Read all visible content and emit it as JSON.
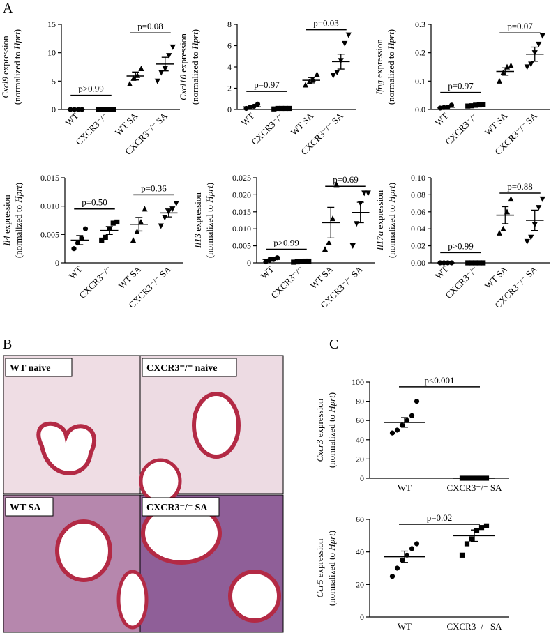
{
  "panel_labels": [
    "A",
    "B",
    "C"
  ],
  "histology_labels": [
    "WT naive",
    "CXCR3⁻/⁻ naive",
    "WT SA",
    "CXCR3⁻/⁻ SA"
  ],
  "chart_data": [
    {
      "type": "dotplot",
      "ylabel": {
        "gene": "Cxcl9",
        "suffix": " expression",
        "pre": "(normalized to ",
        "ref": "Hprt",
        "post": ")"
      },
      "ylim": [
        0,
        15
      ],
      "yticks": [
        0,
        5,
        10,
        15
      ],
      "color": "#000000",
      "groups": [
        {
          "category": "WT",
          "marker": "circle",
          "values": [
            0,
            0,
            0,
            0
          ],
          "mean": 0,
          "sem": 0
        },
        {
          "category": "CXCR3⁻/⁻",
          "marker": "square",
          "values": [
            0,
            0,
            0,
            0,
            0
          ],
          "mean": 0,
          "sem": 0
        },
        {
          "category": "WT SA",
          "marker": "triangle",
          "values": [
            4.5,
            5.5,
            6,
            7.2
          ],
          "mean": 5.9,
          "sem": 0.7
        },
        {
          "category": "CXCR3⁻/⁻ SA",
          "marker": "triangle-down",
          "values": [
            5,
            6.5,
            7.2,
            9.5,
            11
          ],
          "mean": 8,
          "sem": 1.2
        }
      ],
      "comparisons": [
        {
          "label": "p>0.99",
          "between": [
            "WT",
            "CXCR3⁻/⁻"
          ],
          "y": 2.5
        },
        {
          "label": "p=0.08",
          "between": [
            "WT SA",
            "CXCR3⁻/⁻ SA"
          ],
          "y": 13.5
        }
      ]
    },
    {
      "type": "dotplot",
      "ylabel": {
        "gene": "Cxcl10",
        "suffix": " expression",
        "pre": "(normalized to ",
        "ref": "Hprt",
        "post": ")"
      },
      "ylim": [
        0,
        8
      ],
      "yticks": [
        0,
        2,
        4,
        6,
        8
      ],
      "color": "#000000",
      "groups": [
        {
          "category": "WT",
          "marker": "circle",
          "values": [
            0.1,
            0.2,
            0.3,
            0.5
          ],
          "mean": 0.25,
          "sem": 0.1
        },
        {
          "category": "CXCR3⁻/⁻",
          "marker": "square",
          "values": [
            0.05,
            0.1,
            0.1,
            0.1,
            0.1
          ],
          "mean": 0.08,
          "sem": 0.01
        },
        {
          "category": "WT SA",
          "marker": "triangle",
          "values": [
            2.3,
            2.6,
            2.8,
            3.3
          ],
          "mean": 2.75,
          "sem": 0.25
        },
        {
          "category": "CXCR3⁻/⁻ SA",
          "marker": "triangle-down",
          "values": [
            3.2,
            3.5,
            4.6,
            6.2,
            7.0
          ],
          "mean": 4.5,
          "sem": 0.7
        }
      ],
      "comparisons": [
        {
          "label": "p=0.97",
          "between": [
            "WT",
            "CXCR3⁻/⁻"
          ],
          "y": 1.7
        },
        {
          "label": "p=0.03",
          "between": [
            "WT SA",
            "CXCR3⁻/⁻ SA"
          ],
          "y": 7.5
        }
      ]
    },
    {
      "type": "dotplot",
      "ylabel": {
        "gene": "Ifng",
        "suffix": " expression",
        "pre": "(normalized to ",
        "ref": "Hprt",
        "post": ")"
      },
      "ylim": [
        0,
        0.3
      ],
      "yticks": [
        {
          "value": 0,
          "label": "0.0"
        },
        0.1,
        0.2,
        0.3
      ],
      "color": "#000000",
      "groups": [
        {
          "category": "WT",
          "marker": "circle",
          "values": [
            0.005,
            0.007,
            0.008,
            0.015
          ],
          "mean": 0.008,
          "sem": 0.002
        },
        {
          "category": "CXCR3⁻/⁻",
          "marker": "square",
          "values": [
            0.012,
            0.013,
            0.015,
            0.016,
            0.018
          ],
          "mean": 0.015,
          "sem": 0.001
        },
        {
          "category": "WT SA",
          "marker": "triangle",
          "values": [
            0.1,
            0.13,
            0.15,
            0.155
          ],
          "mean": 0.134,
          "sem": 0.013
        },
        {
          "category": "CXCR3⁻/⁻ SA",
          "marker": "triangle-down",
          "values": [
            0.15,
            0.16,
            0.2,
            0.23,
            0.26
          ],
          "mean": 0.195,
          "sem": 0.025
        }
      ],
      "comparisons": [
        {
          "label": "p=0.97",
          "between": [
            "WT",
            "CXCR3⁻/⁻"
          ],
          "y": 0.06
        },
        {
          "label": "p=0.07",
          "between": [
            "WT SA",
            "CXCR3⁻/⁻ SA"
          ],
          "y": 0.27
        }
      ]
    },
    {
      "type": "dotplot",
      "ylabel": {
        "gene": "Il4",
        "suffix": " expression",
        "pre": "(normalized to ",
        "ref": "Hprt",
        "post": ")"
      },
      "ylim": [
        0,
        0.015
      ],
      "yticks": [
        0,
        0.005,
        {
          "value": 0.01,
          "label": "0.010"
        },
        0.015
      ],
      "color": "#000000",
      "groups": [
        {
          "category": "WT",
          "marker": "circle",
          "values": [
            0.0025,
            0.0035,
            0.0043,
            0.006
          ],
          "mean": 0.004,
          "sem": 0.0008
        },
        {
          "category": "CXCR3⁻/⁻",
          "marker": "square",
          "values": [
            0.004,
            0.0045,
            0.006,
            0.007,
            0.0072
          ],
          "mean": 0.0057,
          "sem": 0.0007
        },
        {
          "category": "WT SA",
          "marker": "triangle",
          "values": [
            0.004,
            0.0055,
            0.0072,
            0.0095
          ],
          "mean": 0.0068,
          "sem": 0.0012
        },
        {
          "category": "CXCR3⁻/⁻ SA",
          "marker": "triangle-down",
          "values": [
            0.0065,
            0.008,
            0.009,
            0.0095,
            0.0105
          ],
          "mean": 0.0088,
          "sem": 0.0007
        }
      ],
      "comparisons": [
        {
          "label": "p=0.50",
          "between": [
            "WT",
            "CXCR3⁻/⁻"
          ],
          "y": 0.0095
        },
        {
          "label": "p=0.36",
          "between": [
            "WT SA",
            "CXCR3⁻/⁻ SA"
          ],
          "y": 0.012
        }
      ]
    },
    {
      "type": "dotplot",
      "ylabel": {
        "gene": "Il13",
        "suffix": " expression",
        "pre": "(normalized to ",
        "ref": "Hprt",
        "post": ")"
      },
      "ylim": [
        0,
        0.025
      ],
      "yticks": [
        0,
        0.005,
        {
          "value": 0.01,
          "label": "0.010"
        },
        0.015,
        {
          "value": 0.02,
          "label": "0.020"
        },
        0.025
      ],
      "color": "#000000",
      "groups": [
        {
          "category": "WT",
          "marker": "circle",
          "values": [
            0.0003,
            0.0008,
            0.001,
            0.0015
          ],
          "mean": 0.001,
          "sem": 0.0005
        },
        {
          "category": "CXCR3⁻/⁻",
          "marker": "square",
          "values": [
            0.0002,
            0.0003,
            0.0004,
            0.0005,
            0.0005
          ],
          "mean": 0.0004,
          "sem": 0.0001
        },
        {
          "category": "WT SA",
          "marker": "triangle",
          "values": [
            0.004,
            0.006,
            0.013,
            0.023
          ],
          "mean": 0.0118,
          "sem": 0.0045
        },
        {
          "category": "CXCR3⁻/⁻ SA",
          "marker": "triangle-down",
          "values": [
            0.005,
            0.0115,
            0.0175,
            0.0205,
            0.0205
          ],
          "mean": 0.0148,
          "sem": 0.003
        }
      ],
      "comparisons": [
        {
          "label": "p>0.99",
          "between": [
            "WT",
            "CXCR3⁻/⁻"
          ],
          "y": 0.004
        },
        {
          "label": "p=0.69",
          "between": [
            "WT SA",
            "CXCR3⁻/⁻ SA"
          ],
          "y": 0.0225
        }
      ]
    },
    {
      "type": "dotplot",
      "ylabel": {
        "gene": "Il17a",
        "suffix": " expression",
        "pre": "(normalized to ",
        "ref": "Hprt",
        "post": ")"
      },
      "ylim": [
        0,
        0.1
      ],
      "yticks": [
        {
          "value": 0,
          "label": "0.00"
        },
        0.02,
        0.04,
        0.06,
        0.08,
        {
          "value": 0.1,
          "label": "0.10"
        }
      ],
      "color": "#000000",
      "groups": [
        {
          "category": "WT",
          "marker": "circle",
          "values": [
            0,
            0,
            0,
            0
          ],
          "mean": 0,
          "sem": 0
        },
        {
          "category": "CXCR3⁻/⁻",
          "marker": "square",
          "values": [
            0,
            0,
            0,
            0,
            0
          ],
          "mean": 0,
          "sem": 0
        },
        {
          "category": "WT SA",
          "marker": "triangle",
          "values": [
            0.035,
            0.04,
            0.06,
            0.075
          ],
          "mean": 0.056,
          "sem": 0.01
        },
        {
          "category": "CXCR3⁻/⁻ SA",
          "marker": "triangle-down",
          "values": [
            0.025,
            0.03,
            0.045,
            0.065,
            0.075
          ],
          "mean": 0.05,
          "sem": 0.012
        }
      ],
      "comparisons": [
        {
          "label": "p>0.99",
          "between": [
            "WT",
            "CXCR3⁻/⁻"
          ],
          "y": 0.012
        },
        {
          "label": "p=0.88",
          "between": [
            "WT SA",
            "CXCR3⁻/⁻ SA"
          ],
          "y": 0.082
        }
      ]
    },
    {
      "type": "dotplot",
      "ylabel": {
        "gene": "Cxcr3",
        "suffix": " expression",
        "pre": "(normalized to ",
        "ref": "Hprt",
        "post": ")"
      },
      "ylim": [
        0,
        100
      ],
      "yticks": [
        0,
        20,
        40,
        60,
        80,
        100
      ],
      "color": "#000000",
      "groups": [
        {
          "category": "WT",
          "marker": "circle",
          "values": [
            47,
            50,
            55,
            60,
            65,
            80
          ],
          "mean": 58,
          "sem": 5
        },
        {
          "category": "CXCR3⁻/⁻ SA",
          "marker": "square",
          "values": [
            0,
            0,
            0,
            0,
            0,
            0
          ],
          "mean": 0,
          "sem": 0
        }
      ],
      "comparisons": [
        {
          "label": "p<0.001",
          "between": [
            "WT",
            "CXCR3⁻/⁻ SA"
          ],
          "y": 95
        }
      ]
    },
    {
      "type": "dotplot",
      "ylabel": {
        "gene": "Ccr5",
        "suffix": " expression",
        "pre": "(normalized to ",
        "ref": "Hprt",
        "post": ")"
      },
      "ylim": [
        0,
        60
      ],
      "yticks": [
        0,
        20,
        40,
        60
      ],
      "color": "#000000",
      "groups": [
        {
          "category": "WT",
          "marker": "circle",
          "values": [
            25,
            30,
            35,
            38,
            42,
            45
          ],
          "mean": 37,
          "sem": 3.5
        },
        {
          "category": "CXCR3⁻/⁻ SA",
          "marker": "square",
          "values": [
            38,
            45,
            48,
            53,
            55,
            56
          ],
          "mean": 50,
          "sem": 3.5
        }
      ],
      "comparisons": [
        {
          "label": "p=0.02",
          "between": [
            "WT",
            "CXCR3⁻/⁻ SA"
          ],
          "y": 57
        }
      ]
    }
  ]
}
